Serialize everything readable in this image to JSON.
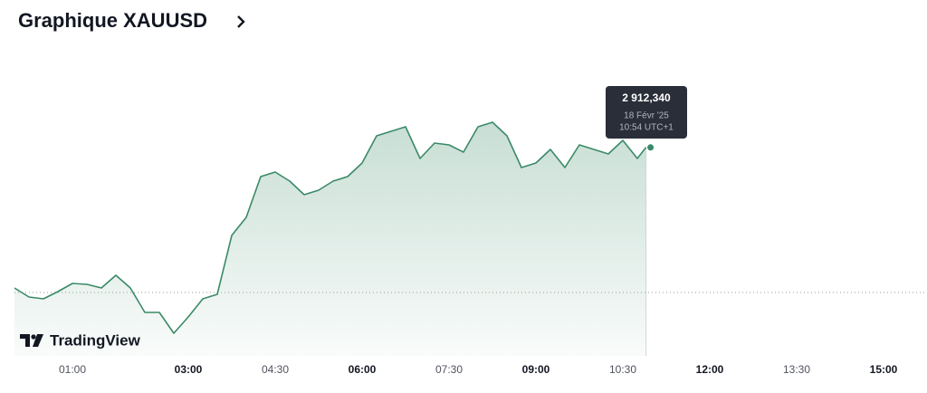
{
  "chart_data": {
    "type": "area",
    "title": "Graphique XAUUSD",
    "color": "#3a8a67",
    "x": [
      "00:00",
      "00:15",
      "00:30",
      "00:45",
      "01:00",
      "01:15",
      "01:30",
      "01:45",
      "02:00",
      "02:15",
      "02:30",
      "02:45",
      "03:00",
      "03:15",
      "03:30",
      "03:45",
      "04:00",
      "04:15",
      "04:30",
      "04:45",
      "05:00",
      "05:15",
      "05:30",
      "05:45",
      "06:00",
      "06:15",
      "06:30",
      "06:45",
      "07:00",
      "07:15",
      "07:30",
      "07:45",
      "08:00",
      "08:15",
      "08:30",
      "08:45",
      "09:00",
      "09:15",
      "09:30",
      "09:45",
      "10:00",
      "10:15",
      "10:30",
      "10:45",
      "10:54"
    ],
    "values": [
      2881.3,
      2879.3,
      2878.9,
      2880.5,
      2882.3,
      2882.1,
      2881.3,
      2884.1,
      2881.3,
      2875.9,
      2875.9,
      2871.3,
      2874.9,
      2878.9,
      2879.9,
      2892.9,
      2896.9,
      2905.9,
      2906.9,
      2904.9,
      2901.9,
      2902.9,
      2904.9,
      2905.9,
      2908.9,
      2914.9,
      2915.9,
      2916.9,
      2909.9,
      2913.3,
      2912.9,
      2911.3,
      2916.9,
      2917.9,
      2914.9,
      2907.9,
      2908.9,
      2911.9,
      2907.9,
      2912.9,
      2911.9,
      2910.9,
      2913.9,
      2909.9,
      2912.34
    ],
    "ylim": [
      2866.9,
      2919.3
    ],
    "reference_line": 2880.3,
    "xticks": [
      "01:00",
      "03:00",
      "04:30",
      "06:00",
      "07:30",
      "09:00",
      "10:30",
      "12:00",
      "13:30",
      "15:00"
    ],
    "tooltip": {
      "value": 2912.34,
      "label": "2 912,340",
      "date": "18 Févr '25",
      "time": "10:54 UTC+1"
    },
    "brand": "TradingView"
  }
}
